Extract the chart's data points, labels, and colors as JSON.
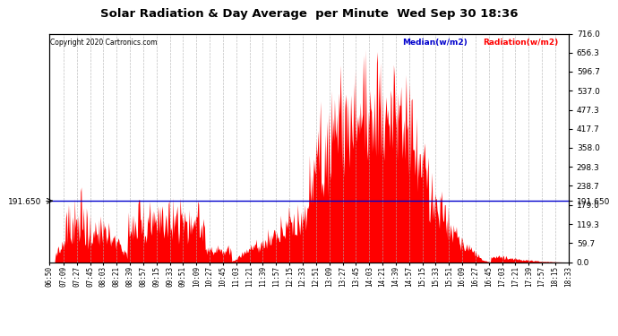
{
  "title": "Solar Radiation & Day Average  per Minute  Wed Sep 30 18:36",
  "copyright": "Copyright 2020 Cartronics.com",
  "median_label": "Median(w/m2)",
  "radiation_label": "Radiation(w/m2)",
  "median_value": 191.65,
  "y_right_labels": [
    716.0,
    656.3,
    596.7,
    537.0,
    477.3,
    417.7,
    358.0,
    298.3,
    238.7,
    179.0,
    119.3,
    59.7,
    0.0
  ],
  "y_max": 716.0,
  "y_min": 0.0,
  "background_color": "#ffffff",
  "grid_color": "#b0b0b0",
  "fill_color": "#ff0000",
  "median_color": "#0000cc",
  "title_color": "#000000",
  "radiation_color": "#ff0000",
  "x_labels": [
    "06:50",
    "07:09",
    "07:27",
    "07:45",
    "08:03",
    "08:21",
    "08:39",
    "08:57",
    "09:15",
    "09:33",
    "09:51",
    "10:09",
    "10:27",
    "10:45",
    "11:03",
    "11:21",
    "11:39",
    "11:57",
    "12:15",
    "12:33",
    "12:51",
    "13:09",
    "13:27",
    "13:45",
    "14:03",
    "14:21",
    "14:39",
    "14:57",
    "15:15",
    "15:33",
    "15:51",
    "16:09",
    "16:27",
    "16:45",
    "17:03",
    "17:21",
    "17:39",
    "17:57",
    "18:15",
    "18:33"
  ],
  "figsize": [
    6.9,
    3.75
  ],
  "dpi": 100
}
